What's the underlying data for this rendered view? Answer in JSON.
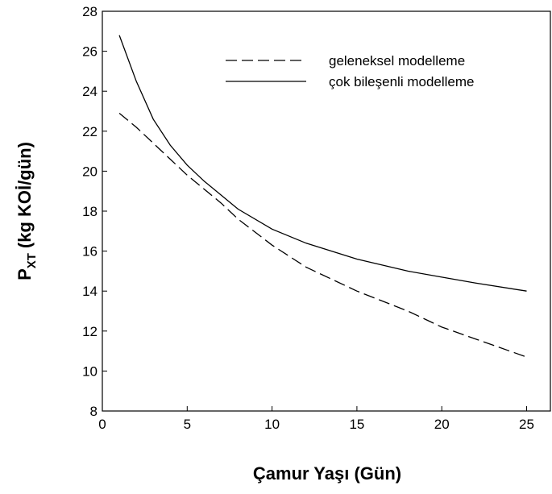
{
  "chart_data": {
    "type": "line",
    "xlabel": "Çamur Yaşı (Gün)",
    "ylabel": {
      "main": "P",
      "sub": "XT",
      "rest": "(kg KOİ/gün)"
    },
    "x": [
      1,
      2,
      3,
      4,
      5,
      6,
      7,
      8,
      10,
      12,
      15,
      18,
      20,
      22,
      25
    ],
    "series": [
      {
        "name": "geleneksel modelleme",
        "color": "#000000",
        "dash": true,
        "values": [
          22.9,
          22.2,
          21.4,
          20.6,
          19.8,
          19.1,
          18.4,
          17.6,
          16.3,
          15.2,
          14.0,
          13.0,
          12.2,
          11.6,
          10.7
        ]
      },
      {
        "name": "çok bileşenli modelleme",
        "color": "#000000",
        "dash": false,
        "values": [
          26.8,
          24.5,
          22.6,
          21.3,
          20.3,
          19.5,
          18.8,
          18.1,
          17.1,
          16.4,
          15.6,
          15.0,
          14.7,
          14.4,
          14.0
        ]
      }
    ],
    "xlim": [
      0,
      26.4
    ],
    "xticks": [
      0,
      5,
      10,
      15,
      20,
      25
    ],
    "ylim": [
      8,
      28
    ],
    "yticks": [
      8,
      10,
      12,
      14,
      16,
      18,
      20,
      22,
      24,
      26,
      28
    ],
    "grid": false,
    "legend": "upper right"
  }
}
